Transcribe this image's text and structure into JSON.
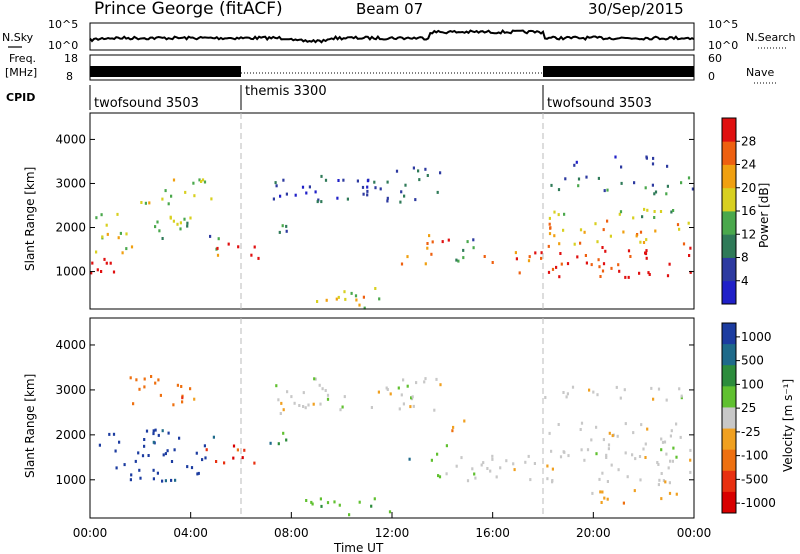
{
  "header": {
    "station": "Prince George (fitACF)",
    "beam": "Beam 07",
    "date": "30/Sep/2015"
  },
  "noise_panel": {
    "left_label": "N.Sky",
    "right_label": "N.Search",
    "left_ticks": [
      "10^5",
      "10^0"
    ],
    "right_ticks": [
      "10^5",
      "10^0"
    ]
  },
  "freq_panel": {
    "left_label_1": "Freq.",
    "left_label_2": "[MHz]",
    "right_label": "Nave",
    "left_ticks": [
      "18",
      "8"
    ],
    "right_ticks": [
      "60",
      "0"
    ]
  },
  "cpid": {
    "label": "CPID",
    "segments": [
      {
        "name": "twofsound 3503",
        "start_h": 0,
        "end_h": 6
      },
      {
        "name": "themis 3300",
        "start_h": 6,
        "end_h": 18
      },
      {
        "name": "twofsound 3503",
        "start_h": 18,
        "end_h": 24
      }
    ]
  },
  "colors": {
    "power": [
      "#2020c8",
      "#2d3aa0",
      "#2f7a58",
      "#4aa84c",
      "#d8d020",
      "#f0a010",
      "#ee6010",
      "#e01010"
    ],
    "velocity": [
      "#1c3ca0",
      "#1e6a8a",
      "#2c8c3c",
      "#60c030",
      "#c8c8c8",
      "#f0a020",
      "#ee7010",
      "#e83010",
      "#d80000"
    ]
  },
  "chart_data": [
    {
      "type": "heatmap",
      "name": "power",
      "ylabel": "Slant Range [km]",
      "xlabel": "",
      "ylim": [
        150,
        4600
      ],
      "yticks": [
        "1000",
        "2000",
        "3000",
        "4000"
      ],
      "colorbar": {
        "label": "Power [dB]",
        "ticks": [
          "4",
          "8",
          "12",
          "16",
          "20",
          "24",
          "28"
        ],
        "range": [
          0,
          32
        ]
      },
      "regions": [
        {
          "t0": 0.0,
          "t1": 2.3,
          "r0": 950,
          "r1": 1350,
          "level": 30
        },
        {
          "t0": 0.0,
          "t1": 2.0,
          "r0": 1450,
          "r1": 2050,
          "level": 18
        },
        {
          "t0": 0.0,
          "t1": 4.0,
          "r0": 2050,
          "r1": 2350,
          "level": 12
        },
        {
          "t0": 2.5,
          "t1": 4.0,
          "r0": 1750,
          "r1": 2400,
          "level": 14
        },
        {
          "t0": 1.8,
          "t1": 4.8,
          "r0": 2550,
          "r1": 3200,
          "level": 16
        },
        {
          "t0": 4.5,
          "t1": 5.2,
          "r0": 1400,
          "r1": 1900,
          "level": 10
        },
        {
          "t0": 5.0,
          "t1": 6.0,
          "r0": 1300,
          "r1": 1750,
          "level": 26
        },
        {
          "t0": 6.0,
          "t1": 6.8,
          "r0": 1250,
          "r1": 1650,
          "level": 28
        },
        {
          "t0": 7.0,
          "t1": 8.0,
          "r0": 1800,
          "r1": 2300,
          "level": 10
        },
        {
          "t0": 7.0,
          "t1": 14.0,
          "r0": 2600,
          "r1": 3400,
          "level": 6
        },
        {
          "t0": 8.5,
          "t1": 11.5,
          "r0": 200,
          "r1": 650,
          "level": 16
        },
        {
          "t0": 10.0,
          "t1": 11.0,
          "r0": 350,
          "r1": 650,
          "level": 20
        },
        {
          "t0": 12.0,
          "t1": 12.7,
          "r0": 1200,
          "r1": 1600,
          "level": 26
        },
        {
          "t0": 13.3,
          "t1": 14.3,
          "r0": 1100,
          "r1": 2000,
          "level": 24
        },
        {
          "t0": 14.3,
          "t1": 15.5,
          "r0": 1100,
          "r1": 1800,
          "level": 8
        },
        {
          "t0": 15.5,
          "t1": 18.0,
          "r0": 1000,
          "r1": 1500,
          "level": 26
        },
        {
          "t0": 18.0,
          "t1": 24.0,
          "r0": 900,
          "r1": 1650,
          "level": 30
        },
        {
          "t0": 18.0,
          "t1": 24.0,
          "r0": 1650,
          "r1": 2200,
          "level": 20
        },
        {
          "t0": 18.0,
          "t1": 24.0,
          "r0": 2200,
          "r1": 2500,
          "level": 12
        },
        {
          "t0": 18.0,
          "t1": 24.0,
          "r0": 2800,
          "r1": 3200,
          "level": 8
        },
        {
          "t0": 19.0,
          "t1": 23.5,
          "r0": 3400,
          "r1": 3650,
          "level": 4
        }
      ]
    },
    {
      "type": "heatmap",
      "name": "velocity",
      "ylabel": "Slant Range [km]",
      "xlabel": "Time UT",
      "ylim": [
        150,
        4600
      ],
      "yticks": [
        "1000",
        "2000",
        "3000",
        "4000"
      ],
      "xticks": [
        "00:00",
        "04:00",
        "08:00",
        "12:00",
        "16:00",
        "20:00",
        "00:00"
      ],
      "colorbar": {
        "label": "Velocity [m s⁻¹]",
        "ticks": [
          "1000",
          "500",
          "100",
          "25",
          "-25",
          "-100",
          "-500",
          "-1000"
        ]
      },
      "regions": [
        {
          "t0": 0.0,
          "t1": 5.0,
          "r0": 1000,
          "r1": 2150,
          "level": 0
        },
        {
          "t0": 1.5,
          "t1": 4.5,
          "r0": 2700,
          "r1": 3400,
          "level": 6
        },
        {
          "t0": 4.5,
          "t1": 6.5,
          "r0": 1300,
          "r1": 1850,
          "level": 7
        },
        {
          "t0": 7.0,
          "t1": 8.0,
          "r0": 1700,
          "r1": 2150,
          "level": 2
        },
        {
          "t0": 7.0,
          "t1": 14.0,
          "r0": 2500,
          "r1": 3300,
          "level": 4
        },
        {
          "t0": 8.5,
          "t1": 12.5,
          "r0": 250,
          "r1": 650,
          "level": 3
        },
        {
          "t0": 12.5,
          "t1": 13.0,
          "r0": 1200,
          "r1": 1500,
          "level": 1
        },
        {
          "t0": 13.5,
          "t1": 14.5,
          "r0": 1100,
          "r1": 1800,
          "level": 3
        },
        {
          "t0": 14.0,
          "t1": 15.0,
          "r0": 2100,
          "r1": 2400,
          "level": 5
        },
        {
          "t0": 14.5,
          "t1": 24.0,
          "r0": 900,
          "r1": 1700,
          "level": 4
        },
        {
          "t0": 18.0,
          "t1": 24.0,
          "r0": 1700,
          "r1": 2300,
          "level": 4
        },
        {
          "t0": 18.0,
          "t1": 24.0,
          "r0": 2800,
          "r1": 3150,
          "level": 4
        },
        {
          "t0": 19.0,
          "t1": 23.5,
          "r0": 500,
          "r1": 800,
          "level": 5
        }
      ]
    }
  ]
}
